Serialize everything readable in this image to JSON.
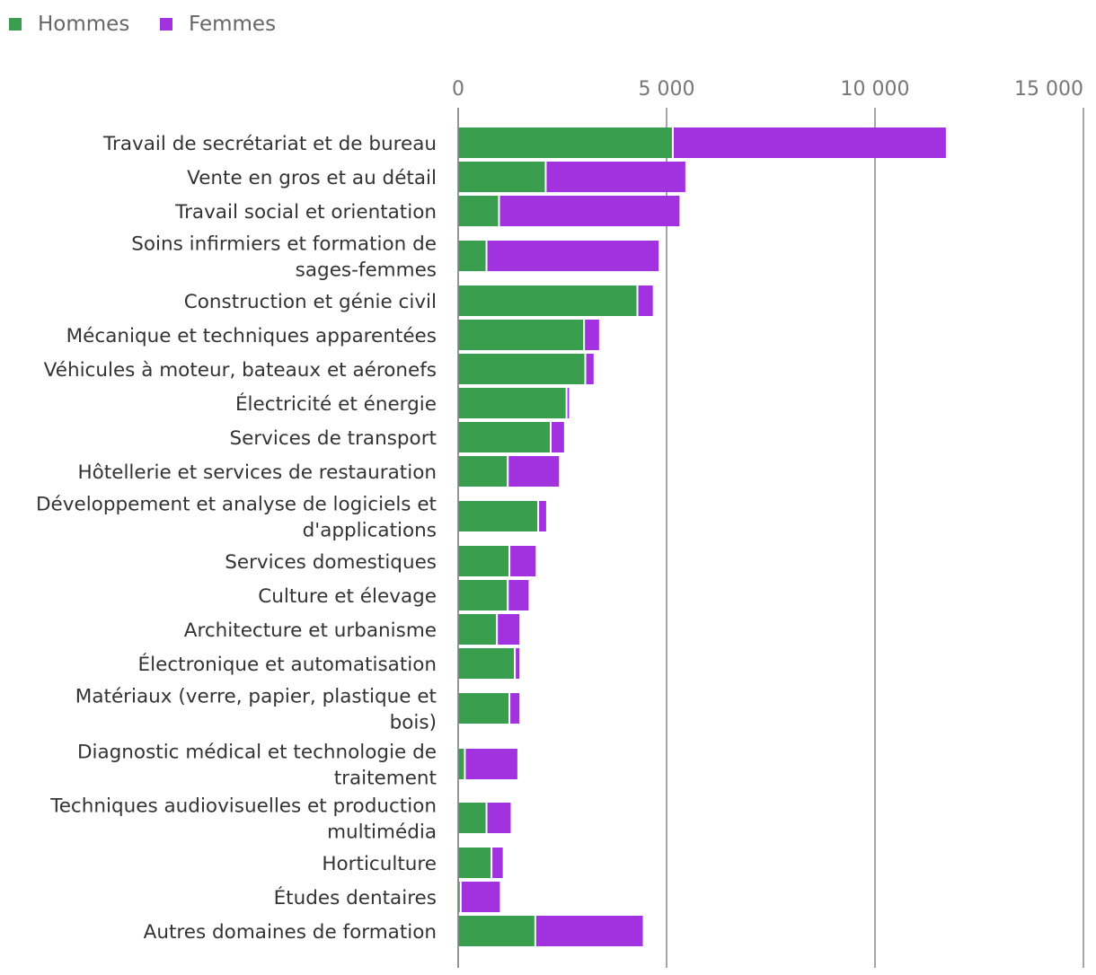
{
  "colors": {
    "hommes": "#3a9e4f",
    "femmes": "#a232e0",
    "grid": "#888888",
    "tick_text": "#777777",
    "label_text": "#333333"
  },
  "legend": [
    {
      "key": "hommes",
      "label": "Hommes"
    },
    {
      "key": "femmes",
      "label": "Femmes"
    }
  ],
  "chart_data": {
    "type": "bar",
    "orientation": "horizontal",
    "stacked": true,
    "legend_position": "top-left",
    "grid": true,
    "xlim": [
      0,
      15000
    ],
    "x_ticks": [
      0,
      5000,
      10000,
      15000
    ],
    "x_tick_labels": [
      "0",
      "5 000",
      "10 000",
      "15 000"
    ],
    "categories": [
      "Travail de secrétariat et de bureau",
      "Vente en gros et au détail",
      "Travail social et orientation",
      "Soins infirmiers et formation de sages-femmes",
      "Construction et génie civil",
      "Mécanique et techniques apparentées",
      "Véhicules à moteur, bateaux et aéronefs",
      "Électricité et énergie",
      "Services de transport",
      "Hôtellerie et services de restauration",
      "Développement et analyse de logiciels et d'applications",
      "Services domestiques",
      "Culture et élevage",
      "Architecture et urbanisme",
      "Électronique et automatisation",
      "Matériaux (verre, papier, plastique et bois)",
      "Diagnostic médical et technologie de traitement",
      "Techniques audiovisuelles et production multimédia",
      "Horticulture",
      "Études dentaires",
      "Autres domaines de formation"
    ],
    "series": [
      {
        "name": "Hommes",
        "values": [
          5150,
          2100,
          980,
          680,
          4300,
          3020,
          3050,
          2600,
          2220,
          1190,
          1920,
          1230,
          1190,
          930,
          1360,
          1230,
          160,
          680,
          800,
          60,
          1850
        ]
      },
      {
        "name": "Femmes",
        "values": [
          6550,
          3350,
          4330,
          4130,
          370,
          360,
          200,
          60,
          320,
          1230,
          190,
          630,
          500,
          540,
          110,
          240,
          1260,
          580,
          270,
          940,
          2580
        ]
      }
    ]
  }
}
